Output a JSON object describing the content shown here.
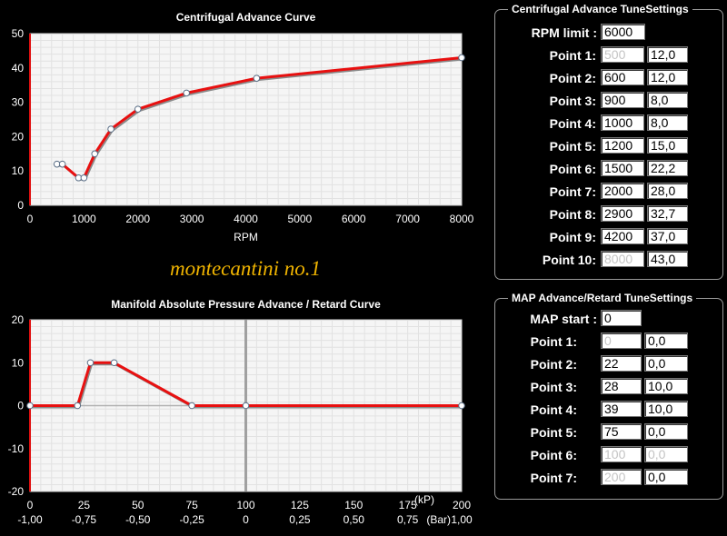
{
  "subtitle": "montecantini no.1",
  "chart_data": [
    {
      "type": "line",
      "title": "Centrifugal Advance Curve",
      "xlabel": "RPM",
      "ylabel": "",
      "xlim": [
        0,
        8000
      ],
      "ylim": [
        0,
        50
      ],
      "x_ticks": [
        "0",
        "1000",
        "2000",
        "3000",
        "4000",
        "5000",
        "6000",
        "7000",
        "8000"
      ],
      "y_ticks": [
        "0",
        "10",
        "20",
        "30",
        "40",
        "50"
      ],
      "grid": true,
      "series": [
        {
          "x": [
            500,
            600,
            900,
            1000,
            1200,
            1500,
            2000,
            2900,
            4200,
            8000
          ],
          "y": [
            12.0,
            12.0,
            8.0,
            8.0,
            15.0,
            22.2,
            28.0,
            32.7,
            37.0,
            43.0
          ]
        }
      ]
    },
    {
      "type": "line",
      "title": "Manifold Absolute Pressure Advance / Retard Curve",
      "xlabel": "(kP)",
      "x2label": "(Bar)",
      "xlim": [
        0,
        200
      ],
      "ylim": [
        -20,
        20
      ],
      "x_ticks": [
        "0",
        "25",
        "50",
        "75",
        "100",
        "125",
        "150",
        "175",
        "200"
      ],
      "x2_ticks": [
        "-1,00",
        "-0,75",
        "-0,50",
        "-0,25",
        "0",
        "0,25",
        "0,50",
        "0,75",
        "1,00"
      ],
      "y_ticks": [
        "-20",
        "-10",
        "0",
        "10",
        "20"
      ],
      "grid": true,
      "series": [
        {
          "x": [
            0,
            22,
            28,
            39,
            75,
            100,
            200
          ],
          "y": [
            0.0,
            0.0,
            10.0,
            10.0,
            0.0,
            0.0,
            0.0
          ]
        }
      ]
    }
  ],
  "centrifugal_panel": {
    "title": "Centrifugal Advance TuneSettings",
    "rpm_limit_label": "RPM limit :",
    "rpm_limit_value": "6000",
    "points": [
      {
        "label": "Point 1:",
        "rpm": "500",
        "deg": "12,0",
        "rpm_disabled": true
      },
      {
        "label": "Point 2:",
        "rpm": "600",
        "deg": "12,0",
        "rpm_disabled": false
      },
      {
        "label": "Point 3:",
        "rpm": "900",
        "deg": "8,0",
        "rpm_disabled": false
      },
      {
        "label": "Point 4:",
        "rpm": "1000",
        "deg": "8,0",
        "rpm_disabled": false
      },
      {
        "label": "Point 5:",
        "rpm": "1200",
        "deg": "15,0",
        "rpm_disabled": false
      },
      {
        "label": "Point 6:",
        "rpm": "1500",
        "deg": "22,2",
        "rpm_disabled": false
      },
      {
        "label": "Point 7:",
        "rpm": "2000",
        "deg": "28,0",
        "rpm_disabled": false
      },
      {
        "label": "Point 8:",
        "rpm": "2900",
        "deg": "32,7",
        "rpm_disabled": false
      },
      {
        "label": "Point 9:",
        "rpm": "4200",
        "deg": "37,0",
        "rpm_disabled": false
      },
      {
        "label": "Point 10:",
        "rpm": "8000",
        "deg": "43,0",
        "rpm_disabled": true
      }
    ]
  },
  "map_panel": {
    "title": "MAP Advance/Retard TuneSettings",
    "map_start_label": "MAP start :",
    "map_start_value": "0",
    "points": [
      {
        "label": "Point 1:",
        "kp": "0",
        "deg": "0,0",
        "kp_disabled": true,
        "deg_disabled": false
      },
      {
        "label": "Point 2:",
        "kp": "22",
        "deg": "0,0",
        "kp_disabled": false,
        "deg_disabled": false
      },
      {
        "label": "Point 3:",
        "kp": "28",
        "deg": "10,0",
        "kp_disabled": false,
        "deg_disabled": false
      },
      {
        "label": "Point 4:",
        "kp": "39",
        "deg": "10,0",
        "kp_disabled": false,
        "deg_disabled": false
      },
      {
        "label": "Point 5:",
        "kp": "75",
        "deg": "0,0",
        "kp_disabled": false,
        "deg_disabled": false
      },
      {
        "label": "Point 6:",
        "kp": "100",
        "deg": "0,0",
        "kp_disabled": true,
        "deg_disabled": true
      },
      {
        "label": "Point 7:",
        "kp": "200",
        "deg": "0,0",
        "kp_disabled": true,
        "deg_disabled": false
      }
    ]
  }
}
